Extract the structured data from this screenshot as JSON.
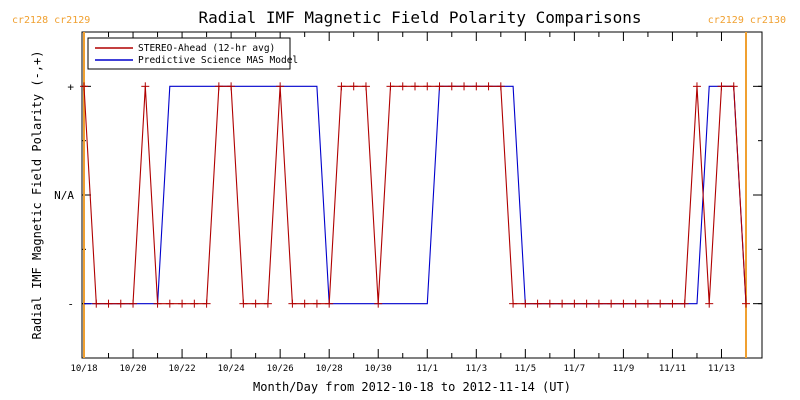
{
  "chart_data": {
    "type": "line",
    "title": "Radial IMF Magnetic Field Polarity Comparisons",
    "xlabel": "Month/Day from 2012-10-18 to 2012-11-14 (UT)",
    "ylabel": "Radial IMF Magnetic Field Polarity (-,+)",
    "xlim": [
      "2012-10-18",
      "2012-11-14"
    ],
    "ylim": [
      -1.5,
      1.5
    ],
    "y_ticks": [
      {
        "value": 1,
        "label": "+"
      },
      {
        "value": 0,
        "label": "N/A"
      },
      {
        "value": -1,
        "label": "-"
      }
    ],
    "x_tick_labels": [
      "10/18",
      "10/20",
      "10/22",
      "10/24",
      "10/26",
      "10/28",
      "10/30",
      "11/1",
      "11/3",
      "11/5",
      "11/7",
      "11/9",
      "11/11",
      "11/13"
    ],
    "legend": {
      "placement": "top-left",
      "entries": [
        {
          "label": "STEREO-Ahead (12-hr avg)",
          "color": "#b00000"
        },
        {
          "label": "Predictive Science MAS Model",
          "color": "#0000cc"
        }
      ]
    },
    "carrington_markers": [
      {
        "date": "2012-10-18",
        "label": "cr2128 cr2129",
        "color": "#f0a030"
      },
      {
        "date": "2012-11-14",
        "label": "cr2129 cr2130",
        "color": "#f0a030"
      }
    ],
    "series": [
      {
        "name": "STEREO-Ahead (12-hr avg)",
        "color": "#b00000",
        "markers": true,
        "x": [
          "2012-10-18 00:00",
          "2012-10-18 12:00",
          "2012-10-19 00:00",
          "2012-10-19 12:00",
          "2012-10-20 00:00",
          "2012-10-20 12:00",
          "2012-10-21 00:00",
          "2012-10-21 12:00",
          "2012-10-22 00:00",
          "2012-10-22 12:00",
          "2012-10-23 00:00",
          "2012-10-23 12:00",
          "2012-10-24 00:00",
          "2012-10-24 12:00",
          "2012-10-25 00:00",
          "2012-10-25 12:00",
          "2012-10-26 00:00",
          "2012-10-26 12:00",
          "2012-10-27 00:00",
          "2012-10-27 12:00",
          "2012-10-28 00:00",
          "2012-10-28 12:00",
          "2012-10-29 00:00",
          "2012-10-29 12:00",
          "2012-10-30 00:00",
          "2012-10-30 12:00",
          "2012-10-31 00:00",
          "2012-10-31 12:00",
          "2012-11-01 00:00",
          "2012-11-01 12:00",
          "2012-11-02 00:00",
          "2012-11-02 12:00",
          "2012-11-03 00:00",
          "2012-11-03 12:00",
          "2012-11-04 00:00",
          "2012-11-04 12:00",
          "2012-11-05 00:00",
          "2012-11-05 12:00",
          "2012-11-06 00:00",
          "2012-11-06 12:00",
          "2012-11-07 00:00",
          "2012-11-07 12:00",
          "2012-11-08 00:00",
          "2012-11-08 12:00",
          "2012-11-09 00:00",
          "2012-11-09 12:00",
          "2012-11-10 00:00",
          "2012-11-10 12:00",
          "2012-11-11 00:00",
          "2012-11-11 12:00",
          "2012-11-12 00:00",
          "2012-11-12 12:00",
          "2012-11-13 00:00",
          "2012-11-13 12:00",
          "2012-11-14 00:00"
        ],
        "y": [
          1,
          -1,
          -1,
          -1,
          -1,
          1,
          -1,
          -1,
          -1,
          -1,
          -1,
          1,
          1,
          -1,
          -1,
          -1,
          1,
          -1,
          -1,
          -1,
          -1,
          1,
          1,
          1,
          -1,
          1,
          1,
          1,
          1,
          1,
          1,
          1,
          1,
          1,
          1,
          -1,
          -1,
          -1,
          -1,
          -1,
          -1,
          -1,
          -1,
          -1,
          -1,
          -1,
          -1,
          -1,
          -1,
          -1,
          1,
          -1,
          1,
          1,
          -1
        ]
      },
      {
        "name": "Predictive Science MAS Model",
        "color": "#0000cc",
        "markers": false,
        "x": [
          "2012-10-18 00:00",
          "2012-10-21 00:00",
          "2012-10-21 12:00",
          "2012-10-27 12:00",
          "2012-10-28 00:00",
          "2012-11-01 00:00",
          "2012-11-01 12:00",
          "2012-11-04 12:00",
          "2012-11-05 00:00",
          "2012-11-12 00:00",
          "2012-11-12 12:00",
          "2012-11-13 12:00",
          "2012-11-14 00:00"
        ],
        "y": [
          -1,
          -1,
          1,
          1,
          -1,
          -1,
          1,
          1,
          -1,
          -1,
          1,
          1,
          -1
        ]
      }
    ]
  }
}
